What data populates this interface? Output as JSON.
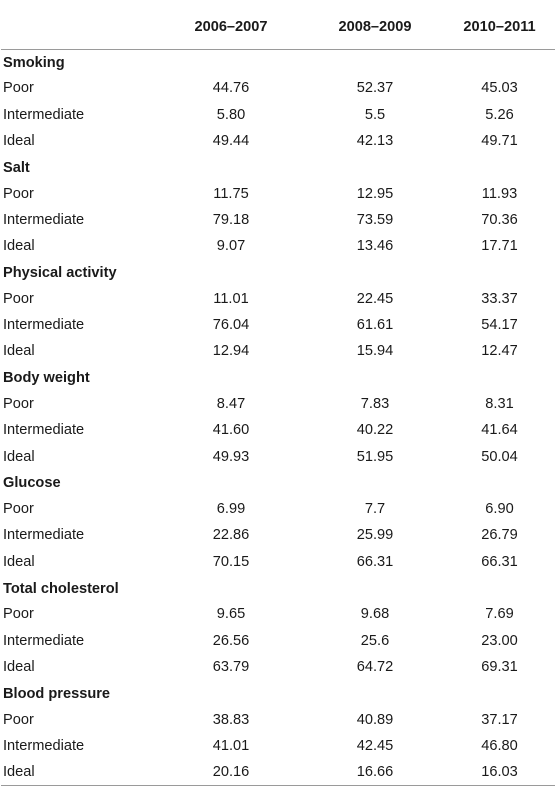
{
  "table": {
    "headers": [
      "",
      "2006–2007",
      "2008–2009",
      "2010–2011"
    ],
    "sections": [
      {
        "title": "Smoking",
        "rows": [
          {
            "label": "Poor",
            "values": [
              "44.76",
              "52.37",
              "45.03"
            ]
          },
          {
            "label": "Intermediate",
            "values": [
              "5.80",
              "5.5",
              "5.26"
            ]
          },
          {
            "label": "Ideal",
            "values": [
              "49.44",
              "42.13",
              "49.71"
            ]
          }
        ]
      },
      {
        "title": "Salt",
        "rows": [
          {
            "label": "Poor",
            "values": [
              "11.75",
              "12.95",
              "11.93"
            ]
          },
          {
            "label": "Intermediate",
            "values": [
              "79.18",
              "73.59",
              "70.36"
            ]
          },
          {
            "label": "Ideal",
            "values": [
              "9.07",
              "13.46",
              "17.71"
            ]
          }
        ]
      },
      {
        "title": "Physical activity",
        "rows": [
          {
            "label": "Poor",
            "values": [
              "11.01",
              "22.45",
              "33.37"
            ]
          },
          {
            "label": "Intermediate",
            "values": [
              "76.04",
              "61.61",
              "54.17"
            ]
          },
          {
            "label": "Ideal",
            "values": [
              "12.94",
              "15.94",
              "12.47"
            ]
          }
        ]
      },
      {
        "title": "Body weight",
        "rows": [
          {
            "label": "Poor",
            "values": [
              "8.47",
              "7.83",
              "8.31"
            ]
          },
          {
            "label": "Intermediate",
            "values": [
              "41.60",
              "40.22",
              "41.64"
            ]
          },
          {
            "label": "Ideal",
            "values": [
              "49.93",
              "51.95",
              "50.04"
            ]
          }
        ]
      },
      {
        "title": "Glucose",
        "rows": [
          {
            "label": "Poor",
            "values": [
              "6.99",
              "7.7",
              "6.90"
            ]
          },
          {
            "label": "Intermediate",
            "values": [
              "22.86",
              "25.99",
              "26.79"
            ]
          },
          {
            "label": "Ideal",
            "values": [
              "70.15",
              "66.31",
              "66.31"
            ]
          }
        ]
      },
      {
        "title": "Total cholesterol",
        "rows": [
          {
            "label": "Poor",
            "values": [
              "9.65",
              "9.68",
              "7.69"
            ]
          },
          {
            "label": "Intermediate",
            "values": [
              "26.56",
              "25.6",
              "23.00"
            ]
          },
          {
            "label": "Ideal",
            "values": [
              "63.79",
              "64.72",
              "69.31"
            ]
          }
        ]
      },
      {
        "title": "Blood pressure",
        "rows": [
          {
            "label": "Poor",
            "values": [
              "38.83",
              "40.89",
              "37.17"
            ]
          },
          {
            "label": "Intermediate",
            "values": [
              "41.01",
              "42.45",
              "46.80"
            ]
          },
          {
            "label": "Ideal",
            "values": [
              "20.16",
              "16.66",
              "16.03"
            ]
          }
        ]
      }
    ]
  }
}
